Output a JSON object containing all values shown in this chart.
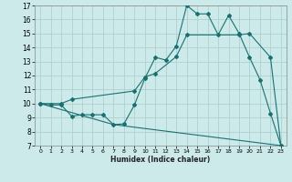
{
  "xlabel": "Humidex (Indice chaleur)",
  "bg_color": "#cceaea",
  "grid_color": "#b0d0d0",
  "line_color": "#1a7070",
  "xlim": [
    -0.5,
    23.5
  ],
  "ylim": [
    7,
    17
  ],
  "xticks": [
    0,
    1,
    2,
    3,
    4,
    5,
    6,
    7,
    8,
    9,
    10,
    11,
    12,
    13,
    14,
    15,
    16,
    17,
    18,
    19,
    20,
    21,
    22,
    23
  ],
  "yticks": [
    7,
    8,
    9,
    10,
    11,
    12,
    13,
    14,
    15,
    16,
    17
  ],
  "line1_x": [
    0,
    1,
    2,
    3,
    4,
    5,
    6,
    7,
    8,
    9,
    10,
    11,
    12,
    13,
    14,
    15,
    16,
    17,
    18,
    19,
    20,
    21,
    22,
    23
  ],
  "line1_y": [
    10.0,
    9.9,
    9.9,
    9.1,
    9.2,
    9.2,
    9.2,
    8.5,
    8.55,
    9.9,
    11.8,
    13.3,
    13.1,
    14.1,
    17.0,
    16.4,
    16.4,
    14.9,
    16.3,
    15.0,
    13.3,
    11.7,
    9.3,
    7.0
  ],
  "line2_x": [
    0,
    2,
    3,
    9,
    10,
    11,
    13,
    14,
    19,
    20,
    22,
    23
  ],
  "line2_y": [
    10.0,
    10.0,
    10.3,
    10.9,
    11.9,
    12.15,
    13.35,
    14.9,
    14.9,
    15.0,
    13.3,
    7.0
  ],
  "line3_x": [
    0,
    7,
    23
  ],
  "line3_y": [
    10.0,
    8.5,
    7.0
  ]
}
